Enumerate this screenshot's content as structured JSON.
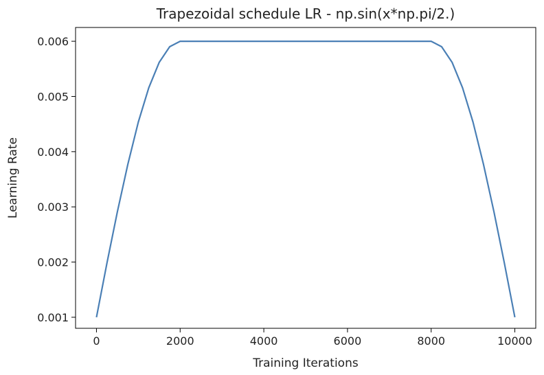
{
  "chart_data": {
    "type": "line",
    "title": "Trapezoidal schedule LR - np.sin(x*np.pi/2.)",
    "xlabel": "Training Iterations",
    "ylabel": "Learning Rate",
    "xlim": [
      -500,
      10500
    ],
    "ylim": [
      0.0008,
      0.00625
    ],
    "x_ticks": [
      0,
      2000,
      4000,
      6000,
      8000,
      10000
    ],
    "x_tick_labels": [
      "0",
      "2000",
      "4000",
      "6000",
      "8000",
      "10000"
    ],
    "y_ticks": [
      0.001,
      0.002,
      0.003,
      0.004,
      0.005,
      0.006
    ],
    "y_tick_labels": [
      "0.001",
      "0.002",
      "0.003",
      "0.004",
      "0.005",
      "0.006"
    ],
    "grid": false,
    "legend": "none",
    "line_color": "#4a7fb5",
    "series": [
      {
        "x": [
          0,
          250,
          500,
          750,
          1000,
          1250,
          1500,
          1750,
          2000,
          3000,
          4000,
          5000,
          6000,
          7000,
          8000,
          8250,
          8500,
          8750,
          9000,
          9250,
          9500,
          9750,
          10000
        ],
        "values": [
          0.001,
          0.00198,
          0.002913,
          0.003772,
          0.004536,
          0.005157,
          0.005619,
          0.005902,
          0.006,
          0.006,
          0.006,
          0.006,
          0.006,
          0.006,
          0.006,
          0.005902,
          0.005619,
          0.005157,
          0.004536,
          0.003772,
          0.002913,
          0.00198,
          0.001
        ]
      }
    ]
  }
}
